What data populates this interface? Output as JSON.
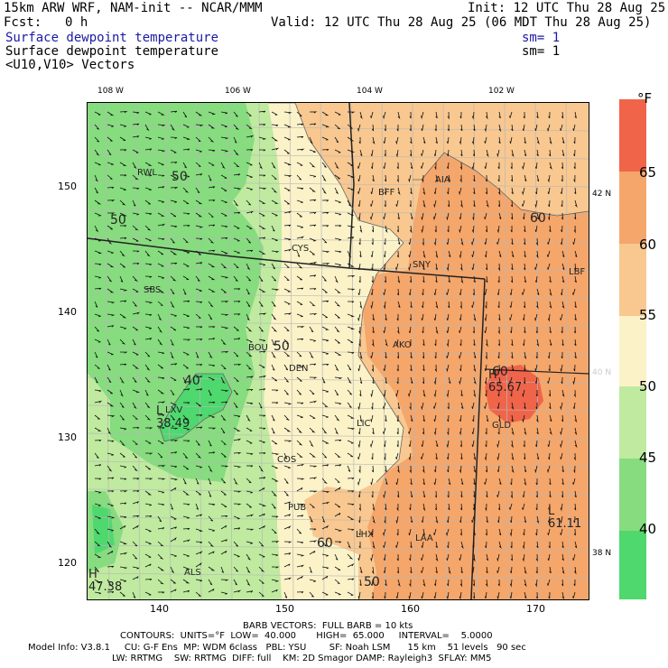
{
  "header": {
    "line1_left": "15km ARW WRF, NAM-init -- NCAR/MMM",
    "line1_right": "Init: 12 UTC Thu 28 Aug 25",
    "fcst_label": "Fcst:",
    "fcst_value": "0 h",
    "valid": "Valid: 12 UTC Thu 28 Aug 25 (06 MDT Thu 28 Aug 25)",
    "field1": "Surface dewpoint temperature",
    "field1_sm": "sm= 1",
    "field2": "Surface dewpoint temperature",
    "field2_sm": "sm= 1",
    "field3": "<U10,V10> Vectors"
  },
  "axes": {
    "top_lon": [
      "108 W",
      "106 W",
      "104 W",
      "102 W"
    ],
    "left_ticks": [
      "150",
      "140",
      "130",
      "120"
    ],
    "bottom_ticks": [
      "140",
      "150",
      "160",
      "170"
    ],
    "right_lat": [
      "42 N",
      "40 N",
      "38 N"
    ]
  },
  "colorbar": {
    "unit": "°F",
    "labels": [
      "65",
      "60",
      "55",
      "50",
      "45",
      "40"
    ],
    "colors": [
      "#f0644a",
      "#f5a66a",
      "#f8c890",
      "#fbf2c8",
      "#bfeaa0",
      "#86dc7e",
      "#4ed86e"
    ]
  },
  "cities": [
    "RWL",
    "BFF",
    "AIA",
    "CYS",
    "SNY",
    "LBF",
    "SBS",
    "BOU",
    "DEN",
    "AKO",
    "GLD",
    "LXV",
    "LIC",
    "COS",
    "PUB",
    "LHX",
    "LAA",
    "ALS"
  ],
  "contour_labels": [
    "50",
    "50",
    "60",
    "40",
    "60",
    "50",
    "50",
    "60"
  ],
  "extrema": {
    "high1": {
      "letter": "H",
      "value": "65.67"
    },
    "low1": {
      "letter": "L",
      "value": "38.49"
    },
    "low2": {
      "letter": "L",
      "value": "61.11"
    },
    "high2": {
      "letter": "H",
      "value": "47.38"
    }
  },
  "footer": {
    "barb": "BARB VECTORS:  FULL BARB = 10 kts",
    "contours": "CONTOURS:  UNITS=°F  LOW=  40.000       HIGH=  65.000     INTERVAL=    5.0000",
    "model1": "Model Info: V3.8.1     CU: G-F Ens  MP: WDM 6class   PBL: YSU        SF: Noah LSM      15 km    51 levels   90 sec",
    "model2": "LW: RRTMG    SW: RRTMG  DIFF: full    KM: 2D Smagor DAMP: Rayleigh3  SFLAY: MM5"
  }
}
